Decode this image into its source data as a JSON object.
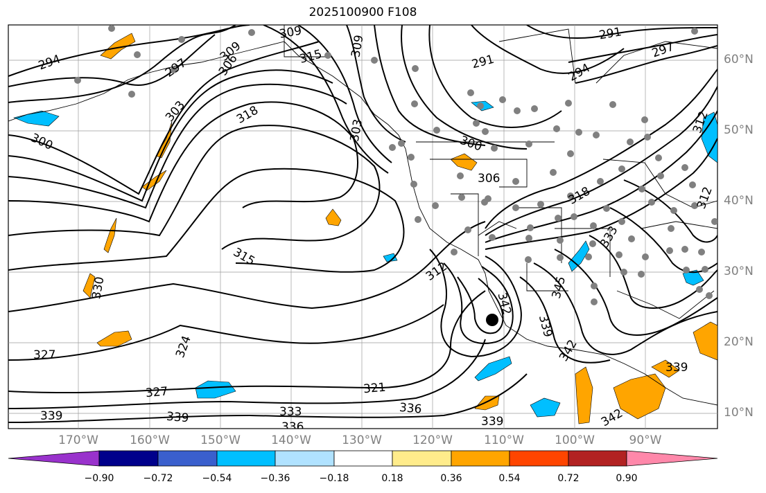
{
  "title": "2025100900 F108",
  "map": {
    "lat_labels": [
      "60°N",
      "50°N",
      "40°N",
      "30°N",
      "20°N",
      "10°N"
    ],
    "lon_labels": [
      "170°W",
      "160°W",
      "150°W",
      "140°W",
      "130°W",
      "120°W",
      "110°W",
      "100°W",
      "90°W"
    ],
    "contour_labels": [
      {
        "text": "294"
      },
      {
        "text": "297"
      },
      {
        "text": "300"
      },
      {
        "text": "303"
      },
      {
        "text": "306"
      },
      {
        "text": "309"
      },
      {
        "text": "309"
      },
      {
        "text": "315"
      },
      {
        "text": "309"
      },
      {
        "text": "291"
      },
      {
        "text": "291"
      },
      {
        "text": "297"
      },
      {
        "text": "294"
      },
      {
        "text": "318"
      },
      {
        "text": "303"
      },
      {
        "text": "300"
      },
      {
        "text": "306"
      },
      {
        "text": "318"
      },
      {
        "text": "312"
      },
      {
        "text": "315"
      },
      {
        "text": "312"
      },
      {
        "text": "330"
      },
      {
        "text": "327"
      },
      {
        "text": "327"
      },
      {
        "text": "339"
      },
      {
        "text": "339"
      },
      {
        "text": "333"
      },
      {
        "text": "336"
      },
      {
        "text": "336"
      },
      {
        "text": "339"
      },
      {
        "text": "321"
      },
      {
        "text": "342"
      },
      {
        "text": "339"
      },
      {
        "text": "345"
      },
      {
        "text": "342"
      },
      {
        "text": "339"
      },
      {
        "text": "342"
      },
      {
        "text": "333"
      },
      {
        "text": "312"
      },
      {
        "text": "324"
      }
    ],
    "colors": {
      "contour": "#000000",
      "station_dot": "#808080",
      "grid": "#aaaaaa",
      "coast": "#000000"
    }
  },
  "colorbar": {
    "ticks": [
      "−0.90",
      "−0.72",
      "−0.54",
      "−0.36",
      "−0.18",
      "0.18",
      "0.36",
      "0.54",
      "0.72",
      "0.90"
    ],
    "colors": [
      "#9932cc",
      "#00008b",
      "#3a5fcd",
      "#00bfff",
      "#b0e2ff",
      "#ffffff",
      "#ffec8b",
      "#ffa500",
      "#ff4500",
      "#b22222",
      "#ff88aa"
    ]
  }
}
